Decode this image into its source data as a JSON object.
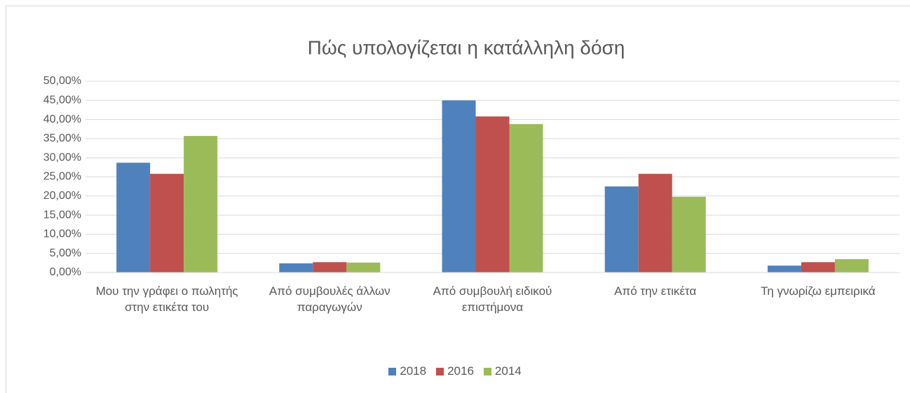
{
  "chart_data": {
    "type": "bar",
    "title": "Πώς υπολογίζεται η κατάλληλη δόση",
    "categories": [
      "Μου την γράφει ο πωλητής στην ετικέτα του",
      "Από συμβουλές άλλων παραγωγών",
      "Από συμβουλή ειδικού επιστήμονα",
      "Από την ετικέτα",
      "Τη γνωρίζω εμπειρικά"
    ],
    "series": [
      {
        "name": "2018",
        "color": "#4f81bd",
        "values": [
          28.7,
          2.4,
          45.0,
          22.5,
          1.8
        ]
      },
      {
        "name": "2016",
        "color": "#c0504d",
        "values": [
          25.8,
          2.7,
          40.8,
          25.8,
          2.7
        ]
      },
      {
        "name": "2014",
        "color": "#9bbb59",
        "values": [
          35.7,
          2.6,
          38.8,
          19.8,
          3.5
        ]
      }
    ],
    "ylim": [
      0,
      50
    ],
    "yticks": [
      {
        "value": 0,
        "label": "0,00%"
      },
      {
        "value": 5,
        "label": "5,00%"
      },
      {
        "value": 10,
        "label": "10,00%"
      },
      {
        "value": 15,
        "label": "15,00%"
      },
      {
        "value": 20,
        "label": "20,00%"
      },
      {
        "value": 25,
        "label": "25,00%"
      },
      {
        "value": 30,
        "label": "30,00%"
      },
      {
        "value": 35,
        "label": "35,00%"
      },
      {
        "value": 40,
        "label": "40,00%"
      },
      {
        "value": 45,
        "label": "45,00%"
      },
      {
        "value": 50,
        "label": "50,00%"
      }
    ],
    "grid": true,
    "legend": "bottom"
  }
}
